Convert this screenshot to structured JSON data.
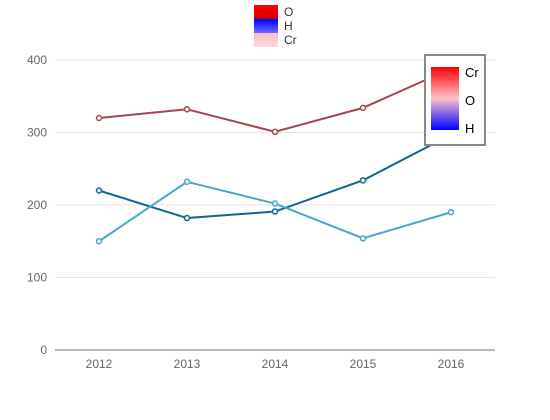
{
  "chart_data": {
    "type": "line",
    "title": "",
    "xlabel": "",
    "ylabel": "",
    "categories": [
      "2012",
      "2013",
      "2014",
      "2015",
      "2016"
    ],
    "ylim": [
      0,
      400
    ],
    "y_ticks": [
      0,
      100,
      200,
      300,
      400
    ],
    "grid": "horizontal",
    "legend": {
      "placement": "top-center",
      "entries": [
        {
          "label": "O",
          "color": "#ff0000"
        },
        {
          "label": "H",
          "color": "#0000ff"
        },
        {
          "label": "Cr",
          "color": "#ffc0cb"
        }
      ]
    },
    "visual_map": {
      "placement": "right",
      "labels": [
        "Cr",
        "O",
        "H"
      ],
      "colors": [
        "#ff0000",
        "#ffc0cb",
        "#0000ff"
      ]
    },
    "series": [
      {
        "values": [
          320,
          332,
          301,
          334,
          388
        ],
        "color": "#a94452"
      },
      {
        "values": [
          220,
          182,
          191,
          234,
          297
        ],
        "color": "#106690"
      },
      {
        "values": [
          150,
          232,
          202,
          154,
          190
        ],
        "color": "#48a6c8"
      }
    ]
  }
}
